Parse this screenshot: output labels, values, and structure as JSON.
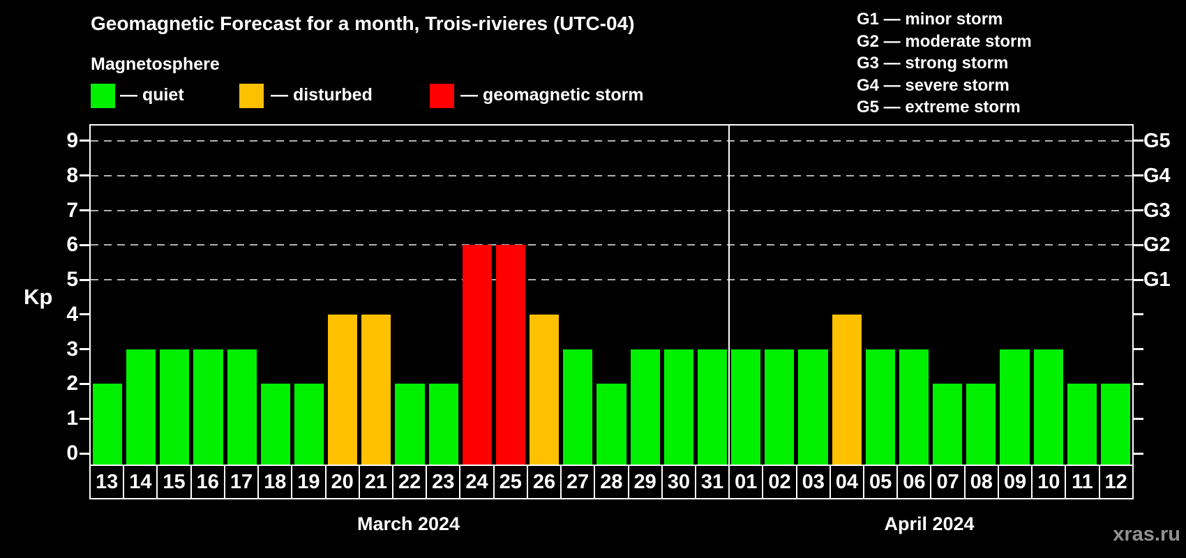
{
  "title": "Geomagnetic Forecast for a month, Trois-rivieres (UTC-04)",
  "subtitle": "Magnetosphere",
  "legend": [
    {
      "label": "— quiet",
      "status": "quiet"
    },
    {
      "label": "— disturbed",
      "status": "disturbed"
    },
    {
      "label": "— geomagnetic storm",
      "status": "storm"
    }
  ],
  "g_legend": [
    {
      "text": "G1 — minor storm"
    },
    {
      "text": "G2 — moderate storm"
    },
    {
      "text": "G3 — strong storm"
    },
    {
      "text": "G4 — severe storm"
    },
    {
      "text": "G5 — extreme storm"
    }
  ],
  "colors": {
    "quiet": "#00f000",
    "disturbed": "#ffc000",
    "storm": "#ff0000",
    "grid": "#b3b3b3",
    "frame": "#ffffff",
    "text": "#ffffff",
    "watermark": "#919191",
    "background": "#000000"
  },
  "y_axis": {
    "label": "Kp",
    "ticks": [
      0,
      1,
      2,
      3,
      4,
      5,
      6,
      7,
      8,
      9
    ],
    "grid_levels": [
      5,
      6,
      7,
      8,
      9
    ]
  },
  "right_axis": {
    "labels": [
      {
        "text": "G1",
        "level": 5
      },
      {
        "text": "G2",
        "level": 6
      },
      {
        "text": "G3",
        "level": 7
      },
      {
        "text": "G4",
        "level": 8
      },
      {
        "text": "G5",
        "level": 9
      }
    ]
  },
  "months": [
    {
      "label": "March 2024",
      "start": 0,
      "count": 19
    },
    {
      "label": "April 2024",
      "start": 19,
      "count": 12
    }
  ],
  "watermark": "xras.ru",
  "chart_data": {
    "type": "bar",
    "title": "Geomagnetic Forecast for a month, Trois-rivieres (UTC-04)",
    "xlabel": "",
    "ylabel": "Kp",
    "ylim": [
      0,
      9
    ],
    "grid": "dashed horizontal at Kp 5-9 (G1-G5)",
    "legend_position": "top-left",
    "bars": [
      {
        "day": "13",
        "month": "March 2024",
        "kp": 2,
        "status": "quiet"
      },
      {
        "day": "14",
        "month": "March 2024",
        "kp": 3,
        "status": "quiet"
      },
      {
        "day": "15",
        "month": "March 2024",
        "kp": 3,
        "status": "quiet"
      },
      {
        "day": "16",
        "month": "March 2024",
        "kp": 3,
        "status": "quiet"
      },
      {
        "day": "17",
        "month": "March 2024",
        "kp": 3,
        "status": "quiet"
      },
      {
        "day": "18",
        "month": "March 2024",
        "kp": 2,
        "status": "quiet"
      },
      {
        "day": "19",
        "month": "March 2024",
        "kp": 2,
        "status": "quiet"
      },
      {
        "day": "20",
        "month": "March 2024",
        "kp": 4,
        "status": "disturbed"
      },
      {
        "day": "21",
        "month": "March 2024",
        "kp": 4,
        "status": "disturbed"
      },
      {
        "day": "22",
        "month": "March 2024",
        "kp": 2,
        "status": "quiet"
      },
      {
        "day": "23",
        "month": "March 2024",
        "kp": 2,
        "status": "quiet"
      },
      {
        "day": "24",
        "month": "March 2024",
        "kp": 6,
        "status": "storm"
      },
      {
        "day": "25",
        "month": "March 2024",
        "kp": 6,
        "status": "storm"
      },
      {
        "day": "26",
        "month": "March 2024",
        "kp": 4,
        "status": "disturbed"
      },
      {
        "day": "27",
        "month": "March 2024",
        "kp": 3,
        "status": "quiet"
      },
      {
        "day": "28",
        "month": "March 2024",
        "kp": 2,
        "status": "quiet"
      },
      {
        "day": "29",
        "month": "March 2024",
        "kp": 3,
        "status": "quiet"
      },
      {
        "day": "30",
        "month": "March 2024",
        "kp": 3,
        "status": "quiet"
      },
      {
        "day": "31",
        "month": "March 2024",
        "kp": 3,
        "status": "quiet"
      },
      {
        "day": "01",
        "month": "April 2024",
        "kp": 3,
        "status": "quiet"
      },
      {
        "day": "02",
        "month": "April 2024",
        "kp": 3,
        "status": "quiet"
      },
      {
        "day": "03",
        "month": "April 2024",
        "kp": 3,
        "status": "quiet"
      },
      {
        "day": "04",
        "month": "April 2024",
        "kp": 4,
        "status": "disturbed"
      },
      {
        "day": "05",
        "month": "April 2024",
        "kp": 3,
        "status": "quiet"
      },
      {
        "day": "06",
        "month": "April 2024",
        "kp": 3,
        "status": "quiet"
      },
      {
        "day": "07",
        "month": "April 2024",
        "kp": 2,
        "status": "quiet"
      },
      {
        "day": "08",
        "month": "April 2024",
        "kp": 2,
        "status": "quiet"
      },
      {
        "day": "09",
        "month": "April 2024",
        "kp": 3,
        "status": "quiet"
      },
      {
        "day": "10",
        "month": "April 2024",
        "kp": 3,
        "status": "quiet"
      },
      {
        "day": "11",
        "month": "April 2024",
        "kp": 2,
        "status": "quiet"
      },
      {
        "day": "12",
        "month": "April 2024",
        "kp": 2,
        "status": "quiet"
      }
    ]
  }
}
